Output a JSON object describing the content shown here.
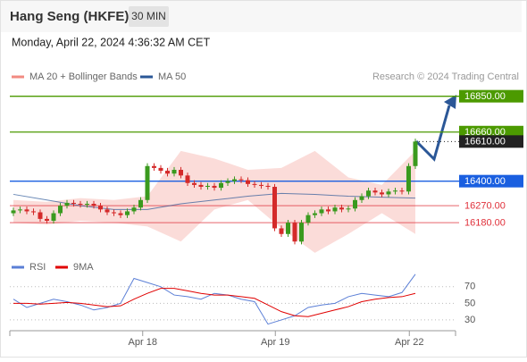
{
  "header": {
    "title": "Hang Seng (HKFE)",
    "interval": "30 MIN",
    "timestamp": "Monday, April 22, 2024 4:36:32 AM CET",
    "watermark": "Research © 2024 Trading Central"
  },
  "chart_data": [
    {
      "type": "candlestick",
      "xlim": [
        -0.5,
        66
      ],
      "ylim": [
        16010,
        16910
      ],
      "up_color": "#3a9a1e",
      "down_color": "#d42a2a",
      "open": [
        16230,
        16245,
        16250,
        16240,
        16235,
        16200,
        16190,
        16230,
        16270,
        16285,
        16280,
        16275,
        16280,
        16270,
        16250,
        16235,
        16230,
        16220,
        16240,
        16260,
        16300,
        16480,
        16470,
        16455,
        16440,
        16460,
        16430,
        16390,
        16380,
        16370,
        16375,
        16365,
        16390,
        16400,
        16410,
        16405,
        16385,
        16380,
        16375,
        16370,
        16150,
        16120,
        16180,
        16080,
        16180,
        16220,
        16230,
        16250,
        16240,
        16260,
        16250,
        16255,
        16300,
        16320,
        16350,
        16340,
        16330,
        16345,
        16350,
        16345,
        16480
      ],
      "high": [
        16260,
        16265,
        16265,
        16255,
        16250,
        16215,
        16245,
        16285,
        16300,
        16300,
        16295,
        16295,
        16295,
        16285,
        16265,
        16250,
        16245,
        16255,
        16275,
        16315,
        16495,
        16495,
        16485,
        16470,
        16475,
        16475,
        16445,
        16405,
        16395,
        16390,
        16390,
        16405,
        16415,
        16425,
        16425,
        16420,
        16400,
        16395,
        16390,
        16385,
        16165,
        16195,
        16195,
        16195,
        16235,
        16245,
        16265,
        16265,
        16275,
        16275,
        16270,
        16315,
        16335,
        16365,
        16365,
        16355,
        16360,
        16365,
        16365,
        16495,
        16625
      ],
      "low": [
        16215,
        16230,
        16225,
        16220,
        16185,
        16175,
        16175,
        16215,
        16255,
        16265,
        16260,
        16260,
        16255,
        16235,
        16220,
        16215,
        16205,
        16205,
        16225,
        16245,
        16285,
        16455,
        16440,
        16425,
        16425,
        16415,
        16375,
        16365,
        16355,
        16355,
        16350,
        16350,
        16375,
        16385,
        16390,
        16370,
        16365,
        16360,
        16355,
        16135,
        16105,
        16105,
        16065,
        16065,
        16165,
        16205,
        16215,
        16225,
        16225,
        16235,
        16235,
        16240,
        16285,
        16305,
        16325,
        16315,
        16315,
        16330,
        16330,
        16330,
        16465
      ],
      "close": [
        16245,
        16250,
        16240,
        16235,
        16200,
        16190,
        16230,
        16270,
        16285,
        16280,
        16275,
        16280,
        16270,
        16250,
        16235,
        16230,
        16220,
        16240,
        16260,
        16300,
        16480,
        16470,
        16455,
        16440,
        16460,
        16430,
        16390,
        16380,
        16370,
        16375,
        16365,
        16390,
        16400,
        16410,
        16405,
        16385,
        16380,
        16375,
        16370,
        16150,
        16120,
        16180,
        16080,
        16180,
        16220,
        16230,
        16250,
        16240,
        16260,
        16250,
        16255,
        16300,
        16320,
        16350,
        16340,
        16330,
        16345,
        16350,
        16345,
        16480,
        16610
      ],
      "series_x": [
        0,
        5,
        10,
        15,
        20,
        25,
        30,
        35,
        40,
        45,
        50,
        55,
        60
      ],
      "series": [
        {
          "name": "MA 20 + Bollinger Bands",
          "color": "#f28b82",
          "upper": [
            16300,
            16290,
            16310,
            16300,
            16320,
            16560,
            16520,
            16460,
            16470,
            16560,
            16420,
            16380,
            16560
          ],
          "lower": [
            16180,
            16170,
            16190,
            16180,
            16160,
            16080,
            16250,
            16300,
            16150,
            16020,
            16120,
            16230,
            16120
          ]
        },
        {
          "name": "MA 50",
          "color": "#2b5797",
          "values": [
            16330,
            16300,
            16270,
            16250,
            16250,
            16280,
            16300,
            16320,
            16335,
            16330,
            16320,
            16315,
            16310
          ]
        }
      ],
      "levels": [
        {
          "value": 16850,
          "label": "16850.00",
          "color": "#4c9a00",
          "boxed": true
        },
        {
          "value": 16660,
          "label": "16660.00",
          "color": "#4c9a00",
          "boxed": true
        },
        {
          "value": 16610,
          "label": "16610.00",
          "color": "#222222",
          "boxed": true
        },
        {
          "value": 16400,
          "label": "16400.00",
          "color": "#1a5fe0",
          "boxed": true
        },
        {
          "value": 16270,
          "label": "16270.00",
          "color": "#e0303a",
          "boxed": false
        },
        {
          "value": 16180,
          "label": "16180.00",
          "color": "#e0303a",
          "boxed": false
        }
      ]
    },
    {
      "type": "line",
      "xlim": [
        -0.5,
        66
      ],
      "ylim": [
        17,
        87
      ],
      "yticks": [
        30,
        50,
        70
      ],
      "xticks": [
        {
          "value": 19.3,
          "label": "Apr 18"
        },
        {
          "value": 39.1,
          "label": "Apr 19"
        },
        {
          "value": 59.1,
          "label": "Apr 22"
        }
      ],
      "x": [
        0,
        2,
        4,
        6,
        8,
        10,
        12,
        14,
        16,
        18,
        20,
        22,
        24,
        26,
        28,
        30,
        32,
        34,
        36,
        38,
        40,
        42,
        44,
        46,
        48,
        50,
        52,
        54,
        56,
        58,
        60
      ],
      "series": [
        {
          "name": "RSI",
          "color": "#5b7fd6",
          "values": [
            55,
            45,
            50,
            55,
            52,
            48,
            42,
            45,
            50,
            80,
            75,
            70,
            60,
            58,
            55,
            62,
            60,
            55,
            52,
            25,
            30,
            35,
            45,
            48,
            50,
            58,
            62,
            60,
            58,
            63,
            85
          ]
        },
        {
          "name": "9MA",
          "color": "#e00000",
          "values": [
            50,
            50,
            49,
            50,
            51,
            50,
            48,
            46,
            47,
            55,
            62,
            68,
            68,
            65,
            62,
            60,
            60,
            58,
            56,
            48,
            40,
            35,
            34,
            38,
            42,
            46,
            52,
            55,
            57,
            58,
            62
          ]
        }
      ]
    }
  ]
}
